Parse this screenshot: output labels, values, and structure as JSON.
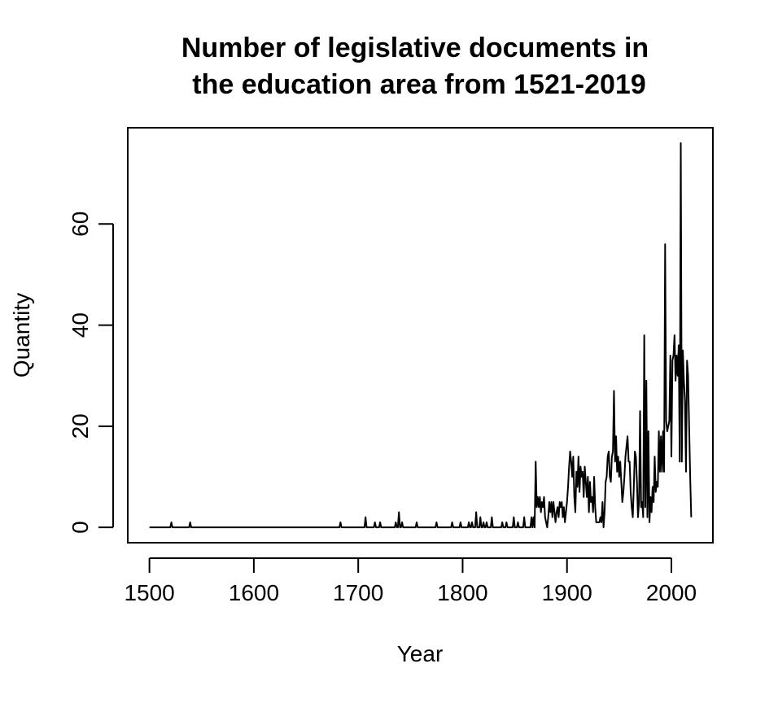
{
  "chart_data": {
    "type": "line",
    "title": [
      "Number of legislative documents in",
      "the education area from 1521-2019"
    ],
    "x_label": "Year",
    "y_label": "Quantity",
    "x": [
      1500,
      1520,
      1521,
      1522,
      1538,
      1539,
      1540,
      1682,
      1683,
      1684,
      1706,
      1707,
      1708,
      1715,
      1716,
      1717,
      1720,
      1721,
      1722,
      1735,
      1736,
      1737,
      1738,
      1739,
      1740,
      1741,
      1742,
      1743,
      1755,
      1756,
      1757,
      1774,
      1775,
      1776,
      1789,
      1790,
      1791,
      1797,
      1798,
      1799,
      1805,
      1806,
      1807,
      1808,
      1809,
      1810,
      1812,
      1813,
      1814,
      1816,
      1817,
      1818,
      1819,
      1820,
      1821,
      1822,
      1823,
      1824,
      1827,
      1828,
      1829,
      1837,
      1838,
      1839,
      1841,
      1842,
      1843,
      1848,
      1849,
      1850,
      1852,
      1853,
      1854,
      1858,
      1859,
      1860,
      1865,
      1866,
      1867,
      1868,
      1869,
      1870,
      1871,
      1872,
      1873,
      1874,
      1875,
      1876,
      1877,
      1878,
      1879,
      1880,
      1881,
      1882,
      1883,
      1884,
      1885,
      1886,
      1887,
      1888,
      1889,
      1890,
      1891,
      1892,
      1893,
      1894,
      1895,
      1896,
      1897,
      1898,
      1899,
      1900,
      1901,
      1902,
      1903,
      1904,
      1905,
      1906,
      1907,
      1908,
      1909,
      1910,
      1911,
      1912,
      1913,
      1914,
      1915,
      1916,
      1917,
      1918,
      1919,
      1920,
      1921,
      1922,
      1923,
      1924,
      1925,
      1926,
      1927,
      1928,
      1929,
      1930,
      1931,
      1932,
      1933,
      1934,
      1935,
      1936,
      1937,
      1938,
      1939,
      1940,
      1941,
      1942,
      1943,
      1944,
      1945,
      1946,
      1947,
      1948,
      1949,
      1950,
      1951,
      1952,
      1953,
      1954,
      1955,
      1956,
      1957,
      1958,
      1959,
      1960,
      1961,
      1962,
      1963,
      1964,
      1965,
      1966,
      1967,
      1968,
      1969,
      1970,
      1971,
      1972,
      1973,
      1974,
      1975,
      1976,
      1977,
      1978,
      1979,
      1980,
      1981,
      1982,
      1983,
      1984,
      1985,
      1986,
      1987,
      1988,
      1989,
      1990,
      1991,
      1992,
      1993,
      1994,
      1995,
      1996,
      1997,
      1998,
      1999,
      2000,
      2001,
      2002,
      2003,
      2004,
      2005,
      2006,
      2007,
      2008,
      2009,
      2010,
      2011,
      2012,
      2013,
      2014,
      2015,
      2016,
      2017,
      2018,
      2019
    ],
    "values": [
      0,
      0,
      1,
      0,
      0,
      1,
      0,
      0,
      1,
      0,
      0,
      2,
      0,
      0,
      1,
      0,
      0,
      1,
      0,
      0,
      1,
      0,
      0,
      3,
      0,
      0,
      1,
      0,
      0,
      1,
      0,
      0,
      1,
      0,
      0,
      1,
      0,
      0,
      1,
      0,
      0,
      1,
      0,
      0,
      1,
      0,
      0,
      3,
      0,
      0,
      2,
      0,
      0,
      1,
      0,
      0,
      1,
      0,
      0,
      2,
      0,
      0,
      1,
      0,
      0,
      1,
      0,
      0,
      2,
      0,
      0,
      1,
      0,
      0,
      2,
      0,
      0,
      2,
      0,
      2,
      0,
      13,
      4,
      6,
      4,
      6,
      3,
      5,
      4,
      6,
      2,
      1,
      0,
      2,
      5,
      3,
      5,
      2,
      5,
      3,
      1,
      3,
      4,
      2,
      5,
      4,
      5,
      2,
      4,
      1,
      3,
      5,
      8,
      12,
      15,
      13,
      10,
      14,
      6,
      3,
      11,
      8,
      14,
      7,
      12,
      10,
      11,
      6,
      12,
      9,
      6,
      10,
      3,
      9,
      5,
      6,
      3,
      10,
      4,
      1,
      1,
      1,
      1,
      2,
      1,
      5,
      0,
      3,
      9,
      10,
      14,
      15,
      10,
      9,
      14,
      15,
      27,
      13,
      18,
      11,
      14,
      10,
      13,
      9,
      5,
      7,
      10,
      14,
      16,
      18,
      13,
      13,
      7,
      4,
      2,
      8,
      15,
      14,
      9,
      2,
      5,
      23,
      4,
      5,
      2,
      38,
      4,
      29,
      2,
      19,
      1,
      6,
      3,
      8,
      5,
      14,
      7,
      9,
      8,
      19,
      11,
      18,
      11,
      19,
      11,
      56,
      21,
      19,
      20,
      21,
      34,
      14,
      33,
      34,
      38,
      29,
      34,
      30,
      36,
      13,
      76,
      13,
      35,
      29,
      25,
      11,
      33,
      30,
      20,
      10,
      2
    ],
    "color": "#000000",
    "xlim": [
      1479.24,
      2039.76
    ],
    "ylim": [
      -3.04,
      79.04
    ],
    "xticks": [
      1500,
      1600,
      1700,
      1800,
      1900,
      2000
    ],
    "yticks": [
      0,
      20,
      40,
      60
    ]
  }
}
